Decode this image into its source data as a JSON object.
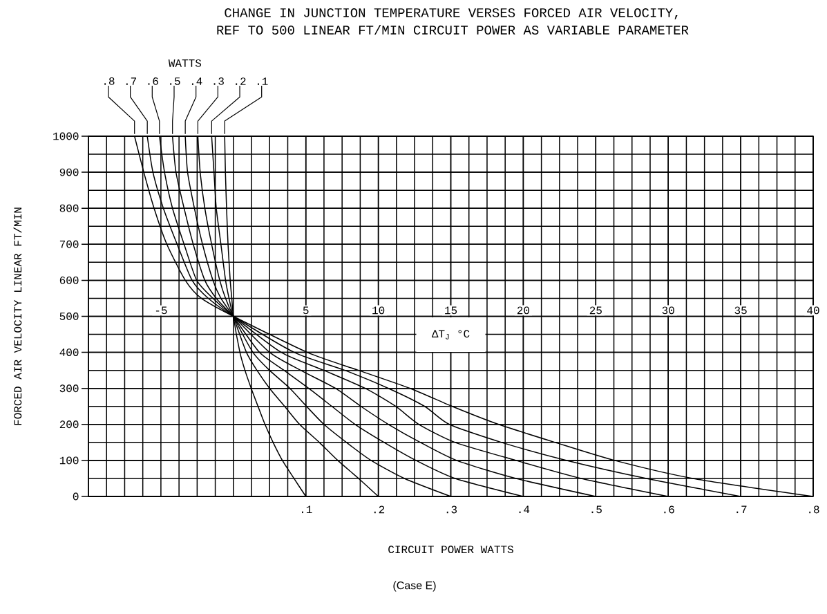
{
  "chart_data": {
    "type": "line",
    "title": "CHANGE IN JUNCTION TEMPERATURE VERSES FORCED AIR VELOCITY,",
    "subtitle": "REF TO 500 LINEAR FT/MIN CIRCUIT POWER AS VARIABLE PARAMETER",
    "xlabel": "ΔT$_{J}$ °C",
    "ylabel": "FORCED AIR VELOCITY LINEAR FT/MIN",
    "x2label": "CIRCUIT POWER WATTS",
    "legend_title": "WATTS",
    "annotations": [
      "(Case E)"
    ],
    "xlim": [
      -10,
      40
    ],
    "ylim": [
      0,
      1000
    ],
    "xticks": [
      -5,
      5,
      10,
      15,
      20,
      25,
      30,
      35,
      40
    ],
    "yticks": [
      0,
      100,
      200,
      300,
      400,
      500,
      600,
      700,
      800,
      900,
      1000
    ],
    "x2lim": [
      -0.2,
      0.8
    ],
    "x2ticks": [
      {
        "value": 0.1,
        "label": ".1"
      },
      {
        "value": 0.2,
        "label": ".2"
      },
      {
        "value": 0.3,
        "label": ".3"
      },
      {
        "value": 0.4,
        "label": ".4"
      },
      {
        "value": 0.5,
        "label": ".5"
      },
      {
        "value": 0.6,
        "label": ".6"
      },
      {
        "value": 0.7,
        "label": ".7"
      },
      {
        "value": 0.8,
        "label": ".8"
      }
    ],
    "grid": true,
    "series": [
      {
        "name": ".1",
        "color": "#000000",
        "x": [
          -0.6,
          -0.55,
          -0.47,
          -0.37,
          -0.22,
          -0.11,
          0,
          0.45,
          0.8,
          1.23,
          1.7,
          2.18,
          2.74,
          3.38,
          4.18,
          5
        ],
        "values": [
          1000,
          900,
          800,
          700,
          600,
          550,
          500,
          400,
          350,
          300,
          250,
          200,
          150,
          100,
          50,
          0
        ]
      },
      {
        "name": ".2",
        "color": "#000000",
        "x": [
          -1.5,
          -1.34,
          -1.18,
          -0.86,
          -0.54,
          -0.3,
          0,
          0.9,
          1.63,
          2.5,
          3.54,
          4.57,
          5.93,
          7.2,
          8.64,
          10
        ],
        "values": [
          1000,
          900,
          800,
          700,
          600,
          550,
          500,
          400,
          350,
          300,
          250,
          200,
          150,
          100,
          50,
          0
        ]
      },
      {
        "name": ".3",
        "color": "#000000",
        "x": [
          -2.45,
          -2.29,
          -1.97,
          -1.5,
          -0.94,
          -0.54,
          0,
          1.35,
          2.5,
          3.9,
          5.05,
          6.25,
          7.8,
          9.5,
          11.8,
          15
        ],
        "values": [
          1000,
          900,
          800,
          700,
          600,
          550,
          500,
          400,
          350,
          300,
          250,
          200,
          150,
          100,
          50,
          0
        ]
      },
      {
        "name": ".4",
        "color": "#000000",
        "x": [
          -3.32,
          -3.16,
          -2.69,
          -2.13,
          -1.41,
          -0.86,
          0,
          1.8,
          3.5,
          5.2,
          6.8,
          8.4,
          10.4,
          12.6,
          15.3,
          20
        ],
        "values": [
          1000,
          900,
          800,
          700,
          600,
          550,
          500,
          400,
          350,
          300,
          250,
          200,
          150,
          100,
          50,
          0
        ]
      },
      {
        "name": ".5",
        "color": "#000000",
        "x": [
          -4.2,
          -3.96,
          -3.4,
          -2.77,
          -1.97,
          -1.18,
          0,
          2.5,
          4.65,
          7.05,
          8.8,
          10.7,
          12.9,
          15.4,
          19.5,
          25
        ],
        "values": [
          1000,
          900,
          800,
          700,
          600,
          550,
          500,
          400,
          350,
          300,
          250,
          200,
          150,
          100,
          50,
          0
        ]
      },
      {
        "name": ".6",
        "color": "#000000",
        "x": [
          -5.1,
          -4.75,
          -4.2,
          -3.4,
          -2.53,
          -1.41,
          0,
          3.3,
          6.25,
          9.1,
          11.2,
          12.8,
          15.3,
          19.5,
          24,
          30
        ],
        "values": [
          1000,
          900,
          800,
          700,
          600,
          550,
          500,
          400,
          350,
          300,
          250,
          200,
          150,
          100,
          50,
          0
        ]
      },
      {
        "name": ".7",
        "color": "#000000",
        "x": [
          -5.94,
          -5.55,
          -4.83,
          -3.88,
          -2.85,
          -1.73,
          0,
          4.2,
          7.7,
          10.7,
          13.2,
          14.9,
          18.5,
          23,
          28.5,
          35
        ],
        "values": [
          1000,
          900,
          800,
          700,
          600,
          550,
          500,
          400,
          350,
          300,
          250,
          200,
          150,
          100,
          50,
          0
        ]
      },
      {
        "name": ".8",
        "color": "#000000",
        "x": [
          -6.82,
          -6.18,
          -5.47,
          -4.59,
          -3.32,
          -2.21,
          0,
          5.1,
          8.64,
          12.2,
          15.1,
          18.3,
          22.2,
          26.3,
          31.7,
          40
        ],
        "values": [
          1000,
          900,
          800,
          700,
          600,
          550,
          500,
          400,
          350,
          300,
          250,
          200,
          150,
          100,
          50,
          0
        ]
      }
    ]
  }
}
